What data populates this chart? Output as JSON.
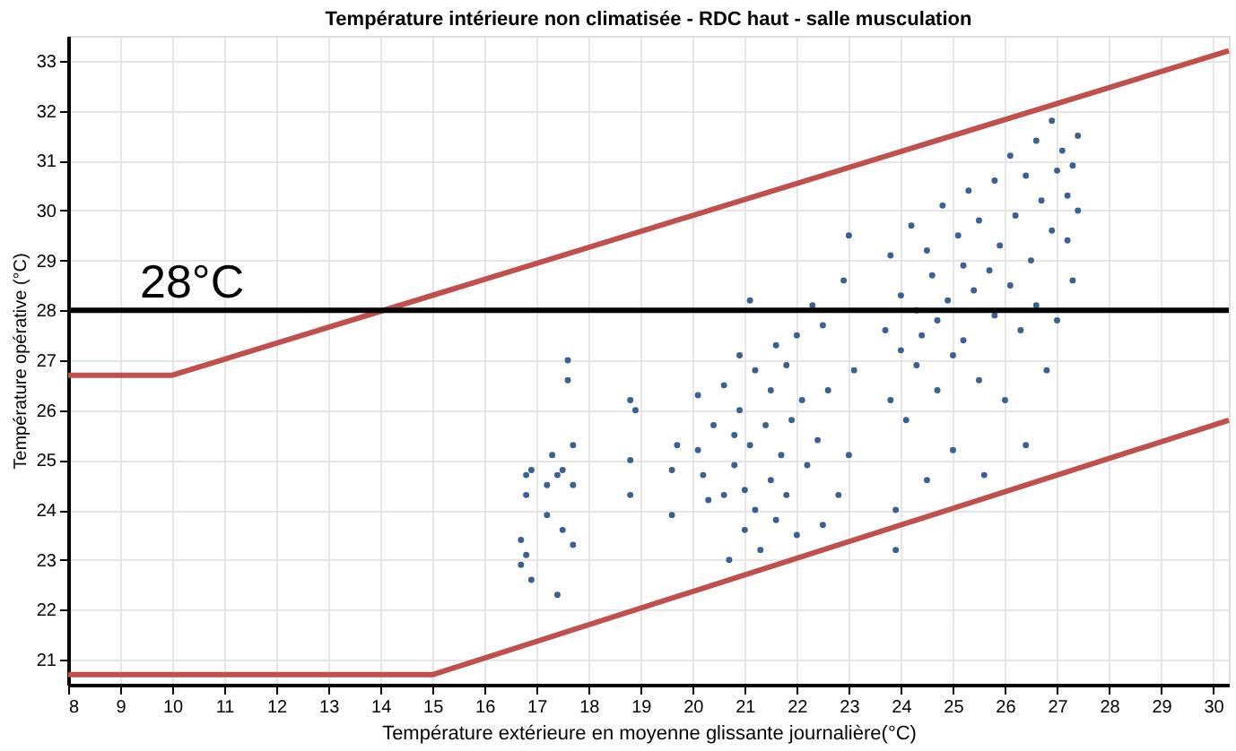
{
  "chart_data": {
    "type": "scatter",
    "title": "Température intérieure non climatisée  - RDC haut - salle musculation",
    "xlabel": "Température extérieure en moyenne glissante journalière(°C)",
    "ylabel": "Température opérative (°C)",
    "xlim": [
      8,
      30.3
    ],
    "xticks": [
      8,
      9,
      10,
      11,
      12,
      13,
      14,
      15,
      16,
      17,
      18,
      19,
      20,
      21,
      22,
      23,
      24,
      25,
      26,
      27,
      28,
      29,
      30
    ],
    "ylim": [
      20.5,
      33.5
    ],
    "yticks": [
      21,
      22,
      23,
      24,
      25,
      26,
      27,
      28,
      29,
      30,
      31,
      32,
      33
    ],
    "grid": true,
    "legend": false,
    "ref_lines": [
      {
        "axis": "y",
        "value": 28,
        "label": "28°C",
        "color": "#000000"
      }
    ],
    "series": [
      {
        "color": "#3f5f8f",
        "marker": "circle",
        "x": [
          16.7,
          16.7,
          16.8,
          16.8,
          16.8,
          16.9,
          16.9,
          17.2,
          17.2,
          17.3,
          17.4,
          17.4,
          17.5,
          17.5,
          17.6,
          17.6,
          17.7,
          17.7,
          17.7,
          18.8,
          18.8,
          18.8,
          18.9,
          19.6,
          19.7,
          19.6,
          20.1,
          20.1,
          20.2,
          20.3,
          20.4,
          20.6,
          20.6,
          20.7,
          20.8,
          20.8,
          20.9,
          20.9,
          21.0,
          21.0,
          21.1,
          21.1,
          21.2,
          21.2,
          21.3,
          21.4,
          21.5,
          21.5,
          21.6,
          21.6,
          21.7,
          21.8,
          21.8,
          21.9,
          22.0,
          22.0,
          22.1,
          22.2,
          22.3,
          22.4,
          22.5,
          22.5,
          22.6,
          22.8,
          22.9,
          23.0,
          23.0,
          23.1,
          23.7,
          23.8,
          23.8,
          23.9,
          23.9,
          24.0,
          24.0,
          24.1,
          24.2,
          24.3,
          24.3,
          24.4,
          24.5,
          24.5,
          24.6,
          24.7,
          24.7,
          24.8,
          24.9,
          25.0,
          25.0,
          25.1,
          25.2,
          25.2,
          25.3,
          25.4,
          25.5,
          25.5,
          25.6,
          25.7,
          25.8,
          25.8,
          25.9,
          26.0,
          26.1,
          26.1,
          26.2,
          26.3,
          26.4,
          26.4,
          26.5,
          26.6,
          26.6,
          26.7,
          26.8,
          26.9,
          26.9,
          27.0,
          27.0,
          27.1,
          27.2,
          27.2,
          27.3,
          27.3,
          27.4,
          27.4
        ],
        "values": [
          22.9,
          23.4,
          24.3,
          24.7,
          23.1,
          22.6,
          24.8,
          23.9,
          24.5,
          25.1,
          24.7,
          22.3,
          24.8,
          23.6,
          26.6,
          27.0,
          25.3,
          24.5,
          23.3,
          26.2,
          25.0,
          24.3,
          26.0,
          24.8,
          25.3,
          23.9,
          26.3,
          25.2,
          24.7,
          24.2,
          25.7,
          26.5,
          24.3,
          23.0,
          25.5,
          24.9,
          27.1,
          26.0,
          24.4,
          23.6,
          25.3,
          28.2,
          26.8,
          24.0,
          23.2,
          25.7,
          26.4,
          24.6,
          27.3,
          23.8,
          25.1,
          24.3,
          26.9,
          25.8,
          23.5,
          27.5,
          26.2,
          24.9,
          28.1,
          25.4,
          27.7,
          23.7,
          26.4,
          24.3,
          28.6,
          29.5,
          25.1,
          26.8,
          27.6,
          29.1,
          26.2,
          24.0,
          23.2,
          28.3,
          27.2,
          25.8,
          29.7,
          28.0,
          26.9,
          27.5,
          24.6,
          29.2,
          28.7,
          27.8,
          26.4,
          30.1,
          28.2,
          27.1,
          25.2,
          29.5,
          28.9,
          27.4,
          30.4,
          28.4,
          26.6,
          29.8,
          24.7,
          28.8,
          30.6,
          27.9,
          29.3,
          26.2,
          31.1,
          28.5,
          29.9,
          27.6,
          30.7,
          25.3,
          29.0,
          31.4,
          28.1,
          30.2,
          26.8,
          31.8,
          29.6,
          30.8,
          27.8,
          31.2,
          30.3,
          29.4,
          30.9,
          28.6,
          30.0,
          31.5
        ]
      },
      {
        "type": "line",
        "color": "#c0504d",
        "marker": "none",
        "x": [
          8,
          10,
          30.3
        ],
        "values": [
          26.7,
          26.7,
          33.2
        ]
      },
      {
        "type": "line",
        "color": "#c0504d",
        "marker": "none",
        "x": [
          8,
          15,
          30.3
        ],
        "values": [
          20.7,
          20.7,
          25.8
        ]
      }
    ]
  }
}
